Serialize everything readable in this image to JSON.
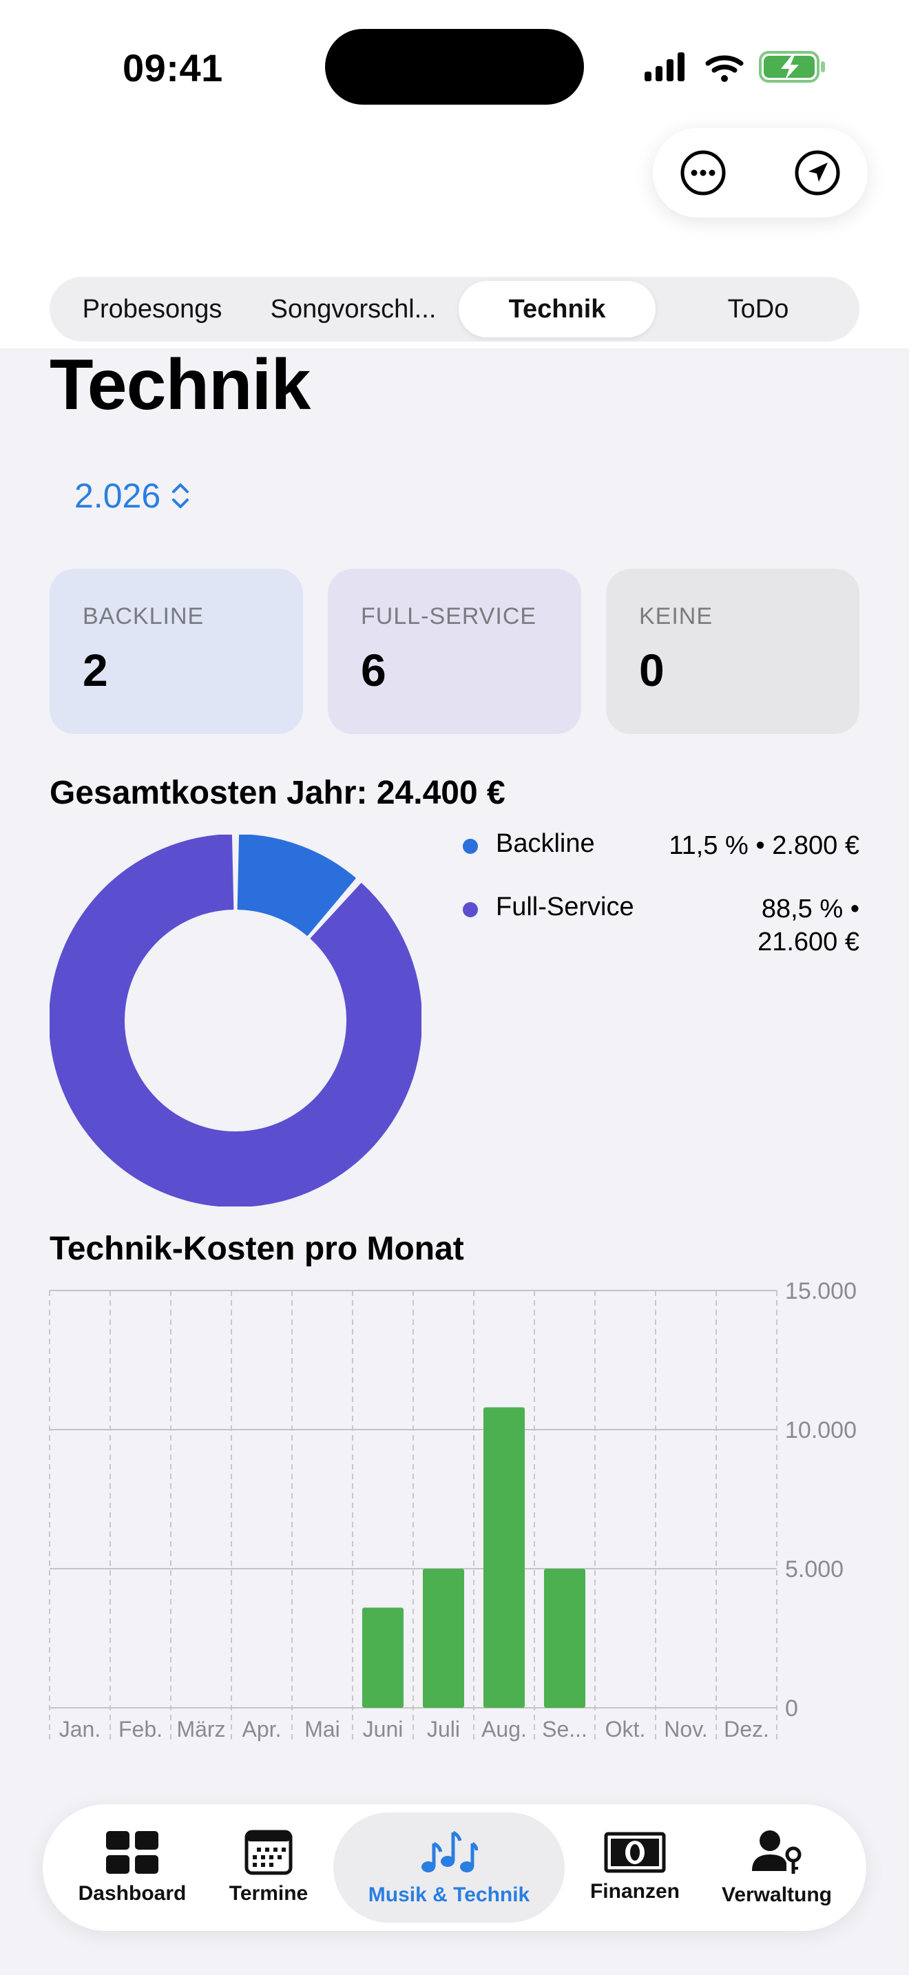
{
  "status": {
    "time": "09:41"
  },
  "segments": [
    {
      "label": "Probesongs",
      "active": false
    },
    {
      "label": "Songvorschl...",
      "active": false
    },
    {
      "label": "Technik",
      "active": true
    },
    {
      "label": "ToDo",
      "active": false
    }
  ],
  "page": {
    "title": "Technik",
    "year": "2.026"
  },
  "cards": [
    {
      "label": "BACKLINE",
      "value": "2",
      "color": "#dfe5f5"
    },
    {
      "label": "FULL-SERVICE",
      "value": "6",
      "color": "#e4e2f2"
    },
    {
      "label": "KEINE",
      "value": "0",
      "color": "#e6e6e9"
    }
  ],
  "donut_section": {
    "title": "Gesamtkosten Jahr: 24.400 €"
  },
  "legend": [
    {
      "name": "Backline",
      "value": "11,5 % • 2.800 €",
      "color": "#2b6fdc"
    },
    {
      "name": "Full-Service",
      "value_line1": "88,5 % •",
      "value_line2": "21.600 €",
      "color": "#5b4fcf"
    }
  ],
  "bar_section": {
    "title": "Technik-Kosten pro Monat"
  },
  "chart_data": [
    {
      "type": "pie",
      "categories": [
        "Backline",
        "Full-Service"
      ],
      "values": [
        2800,
        21600
      ],
      "percent_labels": [
        "11,5 %",
        "88,5 %"
      ],
      "colors": [
        "#2b6fdc",
        "#5b4fcf"
      ],
      "title": "Gesamtkosten Jahr: 24.400 €",
      "legend": "right"
    },
    {
      "type": "bar",
      "title": "Technik-Kosten pro Monat",
      "categories": [
        "Jan.",
        "Feb.",
        "März",
        "Apr.",
        "Mai",
        "Juni",
        "Juli",
        "Aug.",
        "Se...",
        "Okt.",
        "Nov.",
        "Dez."
      ],
      "values": [
        0,
        0,
        0,
        0,
        0,
        3600,
        5000,
        10800,
        5000,
        0,
        0,
        0
      ],
      "ylim": [
        0,
        15000
      ],
      "y_ticks": [
        "0",
        "5.000",
        "10.000",
        "15.000"
      ],
      "bar_color": "#4caf50",
      "grid": true
    }
  ],
  "tabbar": [
    {
      "label": "Dashboard",
      "icon": "dashboard-grid-icon",
      "active": false
    },
    {
      "label": "Termine",
      "icon": "calendar-icon",
      "active": false
    },
    {
      "label": "Musik & Technik",
      "icon": "music-notes-icon",
      "active": true
    },
    {
      "label": "Finanzen",
      "icon": "banknote-icon",
      "active": false
    },
    {
      "label": "Verwaltung",
      "icon": "person-key-icon",
      "active": false
    }
  ]
}
